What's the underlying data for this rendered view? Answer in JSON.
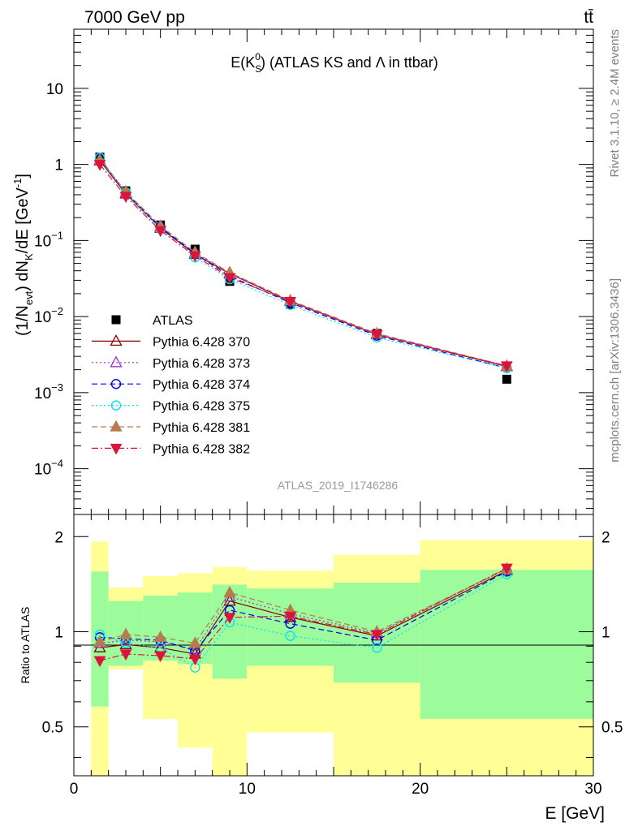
{
  "header": {
    "energy": "7000 GeV pp",
    "process": "tt̄",
    "rivet": "Rivet 3.1.10, ≥ 2.4M events",
    "mcplots": "mcplots.cern.ch [arXiv:1306.3436]",
    "analysis": "ATLAS_2019_I1746286"
  },
  "colors": {
    "ATLAS": "#000000",
    "p370": "#8b0000",
    "p373": "#9a32cd",
    "p374": "#0000ee",
    "p375": "#00e5ee",
    "p381": "#b87b4b",
    "p382": "#dc143c",
    "band_inner": "#9cfc9c",
    "band_outer": "#ffff96"
  },
  "chart_data": [
    {
      "type": "scatter",
      "title": "E(K_S^0) (ATLAS KS and Λ in ttbar)",
      "title_main": "E(K",
      "title_sub": "S",
      "title_sup": "0",
      "title_rest": ") (ATLAS KS and Λ in ttbar)",
      "ylabel": "(1/N_evt) dN_K/dE [GeV^-1]",
      "ylabel_pre": "(1/N",
      "ylabel_sub1": "evt",
      "ylabel_mid": ") dN",
      "ylabel_sub2": "K",
      "ylabel_post": "/dE [GeV",
      "ylabel_sup": "-1",
      "ylabel_end": "]",
      "yscale": "log",
      "ylim": [
        2.5e-05,
        60
      ],
      "xlim": [
        0,
        30
      ],
      "yticks": [
        {
          "v": 10,
          "text": "10",
          "sup": ""
        },
        {
          "v": 1,
          "text": "1",
          "sup": ""
        },
        {
          "v": 0.1,
          "text": "10",
          "sup": "−1"
        },
        {
          "v": 0.01,
          "text": "10",
          "sup": "−2"
        },
        {
          "v": 0.001,
          "text": "10",
          "sup": "−3"
        },
        {
          "v": 0.0001,
          "text": "10",
          "sup": "−4"
        }
      ],
      "legend_position": "left",
      "x": [
        1.5,
        3,
        5,
        7,
        9,
        12.5,
        17.5,
        25
      ],
      "series": [
        {
          "name": "ATLAS",
          "key": "ATLAS",
          "marker": "square",
          "line": "none",
          "values": [
            1.25,
            0.45,
            0.16,
            0.077,
            0.029,
            0.0145,
            0.006,
            0.0015
          ]
        },
        {
          "name": "Pythia 6.428 370",
          "key": "p370",
          "marker": "triangle-up-open",
          "line": "solid",
          "values": [
            1.12,
            0.41,
            0.145,
            0.066,
            0.0365,
            0.0158,
            0.0058,
            0.0022
          ]
        },
        {
          "name": "Pythia 6.428 373",
          "key": "p373",
          "marker": "triangle-up-open",
          "line": "dotted",
          "values": [
            1.15,
            0.42,
            0.148,
            0.068,
            0.0375,
            0.016,
            0.0059,
            0.00222
          ]
        },
        {
          "name": "Pythia 6.428 374",
          "key": "p374",
          "marker": "circle-open",
          "line": "dashed",
          "values": [
            1.2,
            0.425,
            0.15,
            0.067,
            0.034,
            0.0152,
            0.0056,
            0.0021
          ]
        },
        {
          "name": "Pythia 6.428 375",
          "key": "p375",
          "marker": "circle-open",
          "line": "dotted",
          "values": [
            1.23,
            0.43,
            0.142,
            0.06,
            0.031,
            0.0142,
            0.0053,
            0.0021
          ]
        },
        {
          "name": "Pythia 6.428 381",
          "key": "p381",
          "marker": "triangle-up",
          "line": "dashed",
          "values": [
            1.15,
            0.44,
            0.155,
            0.07,
            0.038,
            0.0163,
            0.006,
            0.00225
          ]
        },
        {
          "name": "Pythia 6.428 382",
          "key": "p382",
          "marker": "triangle-down",
          "line": "dashdot",
          "values": [
            1.0,
            0.38,
            0.135,
            0.063,
            0.0325,
            0.0158,
            0.0058,
            0.00225
          ]
        }
      ]
    },
    {
      "type": "line",
      "ylabel": "Ratio to ATLAS",
      "xlabel": "E [GeV]",
      "yscale": "log",
      "ylim": [
        0.35,
        2.35
      ],
      "xlim": [
        0,
        30
      ],
      "yticks": [
        {
          "v": 0.5,
          "text": "0.5"
        },
        {
          "v": 1,
          "text": "1"
        },
        {
          "v": 2,
          "text": "2"
        }
      ],
      "xticks": [
        0,
        10,
        20,
        30
      ],
      "bins": [
        [
          1,
          2
        ],
        [
          2,
          4
        ],
        [
          4,
          6
        ],
        [
          6,
          8
        ],
        [
          8,
          10
        ],
        [
          10,
          15
        ],
        [
          15,
          20
        ],
        [
          20,
          30
        ]
      ],
      "band_inner": [
        [
          0.58,
          1.55
        ],
        [
          0.78,
          1.25
        ],
        [
          0.81,
          1.3
        ],
        [
          0.79,
          1.33
        ],
        [
          0.71,
          1.41
        ],
        [
          0.78,
          1.37
        ],
        [
          0.69,
          1.43
        ],
        [
          0.53,
          1.57
        ]
      ],
      "band_outer": [
        [
          0.3,
          1.93
        ],
        [
          0.76,
          1.38
        ],
        [
          0.53,
          1.5
        ],
        [
          0.43,
          1.53
        ],
        [
          0.3,
          1.6
        ],
        [
          0.48,
          1.56
        ],
        [
          0.3,
          1.75
        ],
        [
          0.3,
          1.95
        ]
      ],
      "x": [
        1.5,
        3,
        5,
        7,
        9,
        12.5,
        17.5,
        25
      ],
      "series": [
        {
          "name": "Pythia 6.428 370",
          "key": "p370",
          "marker": "triangle-up-open",
          "line": "solid",
          "values": [
            0.89,
            0.91,
            0.89,
            0.85,
            1.25,
            1.11,
            0.97,
            1.56
          ]
        },
        {
          "name": "Pythia 6.428 373",
          "key": "p373",
          "marker": "triangle-up-open",
          "line": "dotted",
          "values": [
            0.92,
            0.94,
            0.93,
            0.88,
            1.29,
            1.14,
            0.99,
            1.58
          ]
        },
        {
          "name": "Pythia 6.428 374",
          "key": "p374",
          "marker": "circle-open",
          "line": "dashed",
          "values": [
            0.96,
            0.95,
            0.94,
            0.87,
            1.17,
            1.06,
            0.94,
            1.55
          ]
        },
        {
          "name": "Pythia 6.428 375",
          "key": "p375",
          "marker": "circle-open",
          "line": "dotted",
          "values": [
            0.98,
            0.92,
            0.89,
            0.77,
            1.07,
            0.97,
            0.89,
            1.52
          ]
        },
        {
          "name": "Pythia 6.428 381",
          "key": "p381",
          "marker": "triangle-up",
          "line": "dashed",
          "values": [
            0.93,
            0.98,
            0.96,
            0.92,
            1.33,
            1.17,
            1.0,
            1.58
          ]
        },
        {
          "name": "Pythia 6.428 382",
          "key": "p382",
          "marker": "triangle-down",
          "line": "dashdot",
          "values": [
            0.81,
            0.85,
            0.84,
            0.82,
            1.11,
            1.12,
            0.98,
            1.59
          ]
        }
      ]
    }
  ]
}
